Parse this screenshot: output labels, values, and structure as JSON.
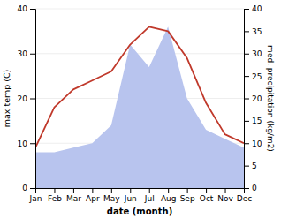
{
  "chart_data": {
    "type": "line",
    "xlabel": "date (month)",
    "ylabel": "max temp (C)",
    "y2label": "med. precipitation (kg/m2)",
    "categories": [
      "Jan",
      "Feb",
      "Mar",
      "Apr",
      "May",
      "Jun",
      "Jul",
      "Aug",
      "Sep",
      "Oct",
      "Nov",
      "Dec"
    ],
    "series": [
      {
        "type": "area",
        "axis": "y2",
        "color": "#b8c4ee",
        "values": [
          8,
          8,
          9,
          10,
          14,
          32,
          27,
          36,
          20,
          13,
          11,
          9
        ]
      },
      {
        "type": "line",
        "color": "#c0392b",
        "values": [
          9,
          18,
          22,
          24,
          26,
          32,
          36,
          35,
          29,
          19,
          12,
          10
        ]
      }
    ],
    "ylim": [
      0,
      40
    ],
    "yticks": [
      0,
      10,
      20,
      30,
      40
    ],
    "y2lim": [
      0,
      40
    ],
    "y2ticks": [
      0,
      5,
      10,
      15,
      20,
      25,
      30,
      35,
      40
    ],
    "grid": true
  }
}
